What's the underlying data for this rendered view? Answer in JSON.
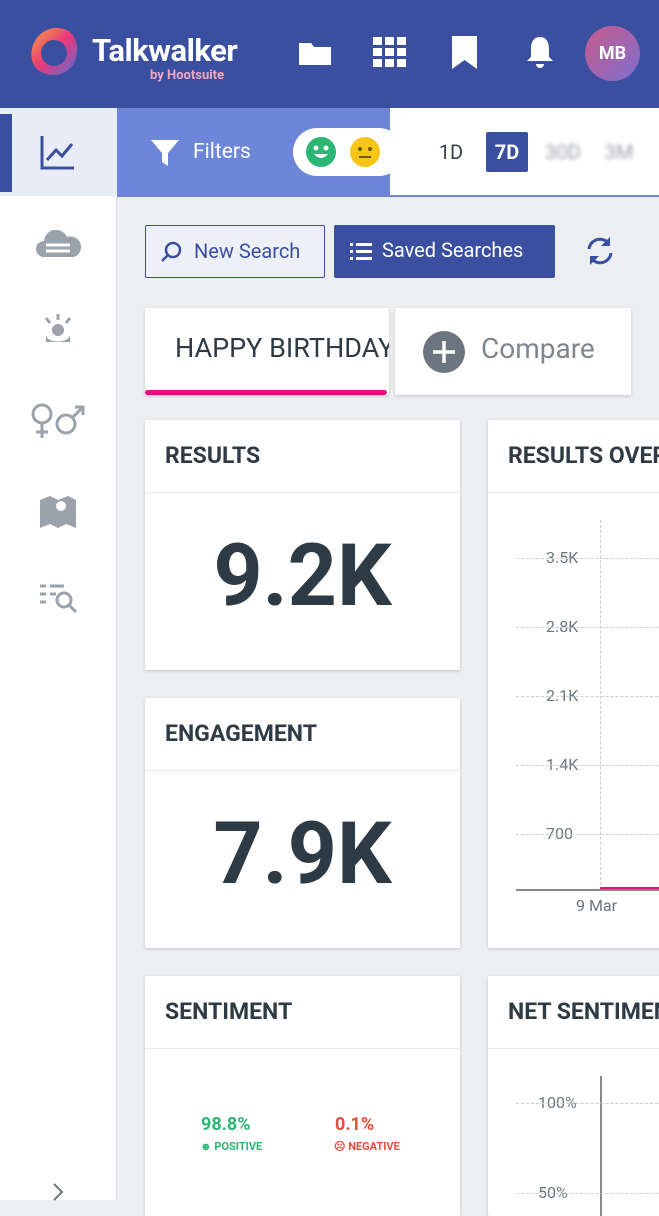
{
  "header": {
    "brand": "Talkwalker",
    "brand_sub": "by Hootsuite",
    "avatar": "MB"
  },
  "toolbar": {
    "filters": "Filters",
    "periods": [
      "1D",
      "7D",
      "30D",
      "3M"
    ]
  },
  "actions": {
    "new_search": "New Search",
    "saved_searches": "Saved Searches"
  },
  "tabs": {
    "query": "HAPPY BIRTHDAY",
    "compare": "Compare"
  },
  "cards": {
    "results": {
      "title": "RESULTS",
      "value": "9.2K"
    },
    "engagement": {
      "title": "ENGAGEMENT",
      "value": "7.9K"
    },
    "sentiment": {
      "title": "SENTIMENT",
      "positive_value": "98.8%",
      "positive_label": "POSITIVE",
      "negative_value": "0.1%",
      "negative_label": "NEGATIVE"
    },
    "results_over_time": {
      "title": "RESULTS OVER TIME",
      "yticks": [
        "3.5K",
        "2.8K",
        "2.1K",
        "1.4K",
        "700"
      ],
      "xlabel": "9 Mar"
    },
    "net_sentiment": {
      "title": "NET SENTIMENT",
      "yticks": [
        "100%",
        "50%"
      ]
    }
  }
}
